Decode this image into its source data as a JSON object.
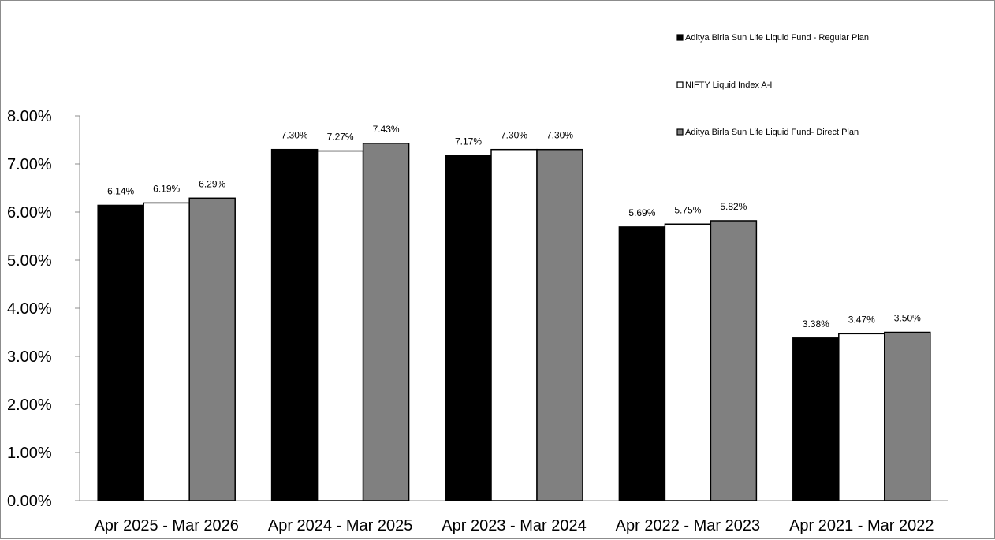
{
  "chart_data": {
    "type": "bar",
    "title": "",
    "xlabel": "",
    "ylabel": "",
    "categories": [
      "Apr 2025 - Mar 2026",
      "Apr 2024 - Mar 2025",
      "Apr 2023 - Mar 2024",
      "Apr 2022 - Mar 2023",
      "Apr 2021 - Mar 2022"
    ],
    "series": [
      {
        "name": "Aditya Birla Sun Life Liquid Fund - Regular Plan",
        "color": "#000000",
        "values": [
          6.14,
          7.3,
          7.17,
          5.69,
          3.38
        ],
        "labels": [
          "6.14%",
          "7.30%",
          "7.17%",
          "5.69%",
          "3.38%"
        ]
      },
      {
        "name": "NIFTY Liquid Index A-I",
        "color": "#ffffff",
        "values": [
          6.19,
          7.27,
          7.3,
          5.75,
          3.47
        ],
        "labels": [
          "6.19%",
          "7.27%",
          "7.30%",
          "5.75%",
          "3.47%"
        ]
      },
      {
        "name": "Aditya Birla Sun Life Liquid Fund- Direct Plan",
        "color": "#808080",
        "values": [
          6.29,
          7.43,
          7.3,
          5.82,
          3.5
        ],
        "labels": [
          "6.29%",
          "7.43%",
          "7.30%",
          "5.82%",
          "3.50%"
        ]
      }
    ],
    "ylim": [
      0,
      8
    ],
    "yticks": [
      0,
      1,
      2,
      3,
      4,
      5,
      6,
      7,
      8
    ],
    "ytick_labels": [
      "0.00%",
      "1.00%",
      "2.00%",
      "3.00%",
      "4.00%",
      "5.00%",
      "6.00%",
      "7.00%",
      "8.00%"
    ],
    "grid": false,
    "legend_position": "top-right"
  }
}
